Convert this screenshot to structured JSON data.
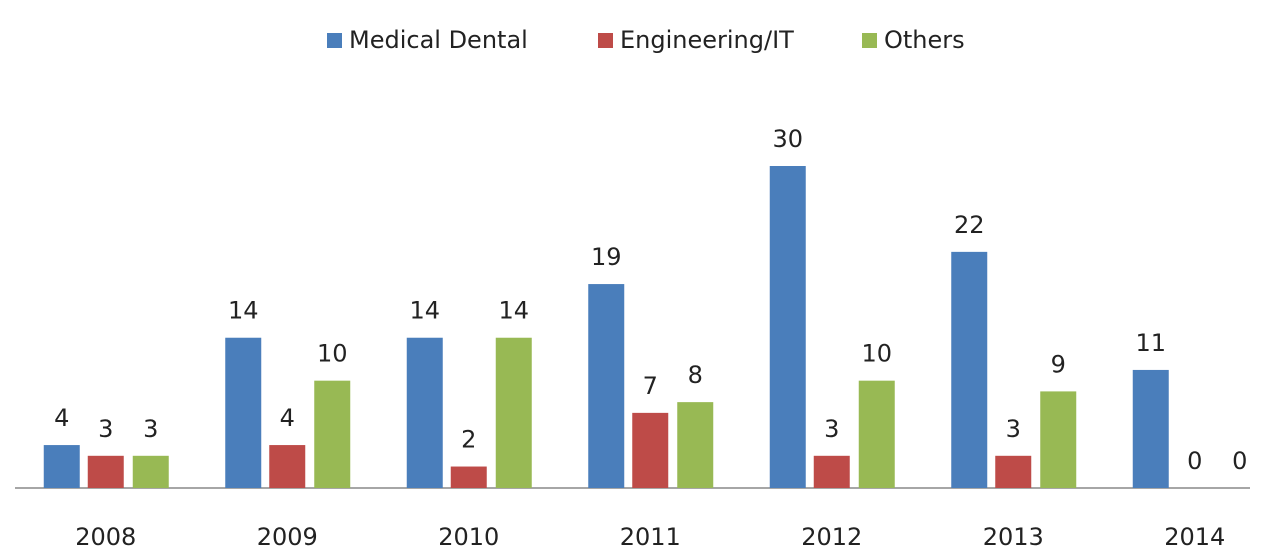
{
  "chart_data": {
    "type": "bar",
    "categories": [
      "2008",
      "2009",
      "2010",
      "2011",
      "2012",
      "2013",
      "2014"
    ],
    "series": [
      {
        "name": "Medical Dental",
        "color": "#4a7ebb",
        "values": [
          4,
          14,
          14,
          19,
          30,
          22,
          11
        ]
      },
      {
        "name": "Engineering/IT",
        "color": "#be4b48",
        "values": [
          3,
          4,
          2,
          7,
          3,
          3,
          0
        ]
      },
      {
        "name": "Others",
        "color": "#98b954",
        "values": [
          3,
          10,
          14,
          8,
          10,
          9,
          0
        ]
      }
    ],
    "legend": "top"
  }
}
